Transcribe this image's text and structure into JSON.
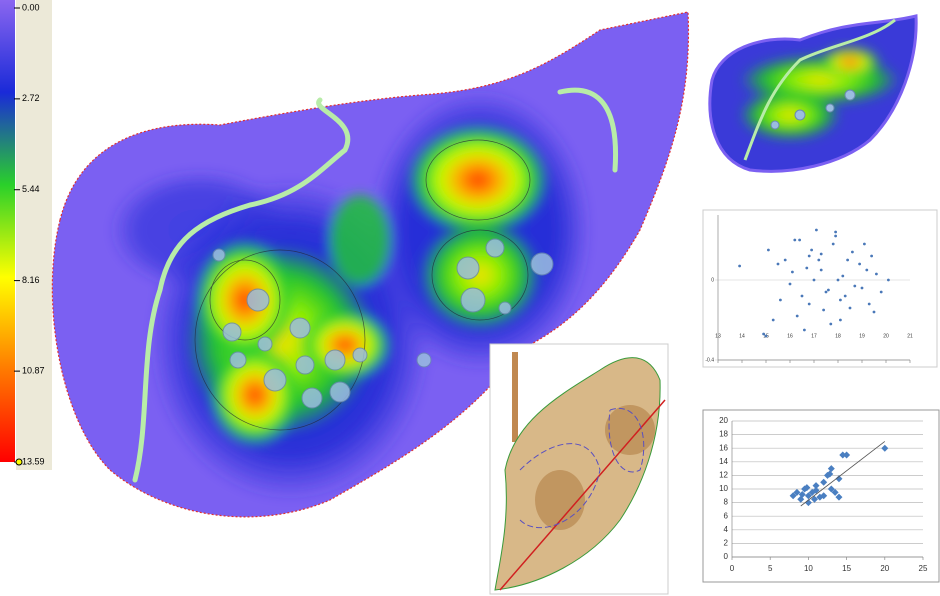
{
  "colorbar": {
    "ticks": [
      {
        "value": 0,
        "label": "0.00"
      },
      {
        "value": 2.72,
        "label": "2.72"
      },
      {
        "value": 5.44,
        "label": "5.44"
      },
      {
        "value": 8.16,
        "label": "8.16"
      },
      {
        "value": 10.87,
        "label": "10.87"
      },
      {
        "value": 13.59,
        "label": "13.59"
      }
    ],
    "lim": [
      0,
      13.59
    ]
  },
  "chart_data": [
    {
      "type": "scatter",
      "color": "#4a78b8",
      "x": [
        15.1,
        15.5,
        16.2,
        16.8,
        17.3,
        17.9,
        18.4,
        19.1,
        19.6,
        16.0,
        16.5,
        17.0,
        17.6,
        18.1,
        18.7,
        19.3,
        15.8,
        16.9,
        17.4,
        18.2,
        18.9,
        19.8,
        15.3,
        16.3,
        17.1,
        17.7,
        18.5,
        19.4,
        16.7,
        17.8,
        18.3,
        16.1,
        17.2,
        18.0,
        19.0,
        15.6,
        16.4,
        17.5,
        18.6,
        19.5,
        13.9,
        14.9,
        15.0,
        20.1,
        16.6,
        17.9,
        18.1,
        17.3,
        16.8,
        19.2
      ],
      "values": [
        0.15,
        0.08,
        0.2,
        0.12,
        0.05,
        0.22,
        0.1,
        0.18,
        0.03,
        -0.02,
        -0.08,
        0.0,
        -0.05,
        -0.1,
        -0.03,
        -0.12,
        0.1,
        0.15,
        -0.15,
        0.02,
        0.08,
        -0.06,
        -0.2,
        -0.18,
        0.25,
        -0.22,
        -0.14,
        0.12,
        0.06,
        0.18,
        -0.08,
        0.04,
        0.1,
        0.0,
        -0.04,
        -0.1,
        0.2,
        -0.06,
        0.14,
        -0.16,
        0.07,
        -0.27,
        -0.28,
        0.0,
        -0.25,
        0.24,
        -0.2,
        0.13,
        -0.12,
        0.05
      ],
      "xlim": [
        13,
        21
      ],
      "xticks": [
        13,
        14,
        15,
        16,
        17,
        18,
        19,
        20,
        21
      ],
      "ylim": [
        -0.4,
        0.325
      ],
      "yticks": [
        0,
        -0.4
      ]
    },
    {
      "type": "scatter",
      "color": "#4a7fc1",
      "x": [
        8,
        8.5,
        9,
        9.2,
        9.5,
        10,
        10,
        10.5,
        11,
        11,
        11.5,
        12,
        12,
        12.5,
        13,
        13,
        13.5,
        14,
        14,
        14.5,
        15,
        9.8,
        10.8,
        12.8,
        20
      ],
      "values": [
        9,
        9.5,
        8.5,
        9.2,
        10,
        9,
        8,
        9.5,
        10.5,
        9.8,
        8.8,
        11,
        9,
        12,
        10,
        13,
        9.5,
        11.5,
        8.8,
        15,
        15,
        10.2,
        8.5,
        12.2,
        16
      ],
      "trendline": {
        "x": [
          9,
          20
        ],
        "y": [
          7.5,
          17
        ]
      },
      "xlim": [
        0,
        25
      ],
      "xticks": [
        0,
        5,
        10,
        15,
        20,
        25
      ],
      "ylim": [
        0,
        20
      ],
      "yticks": [
        0,
        2,
        4,
        6,
        8,
        10,
        12,
        14,
        16,
        18,
        20
      ],
      "grid": true
    }
  ]
}
